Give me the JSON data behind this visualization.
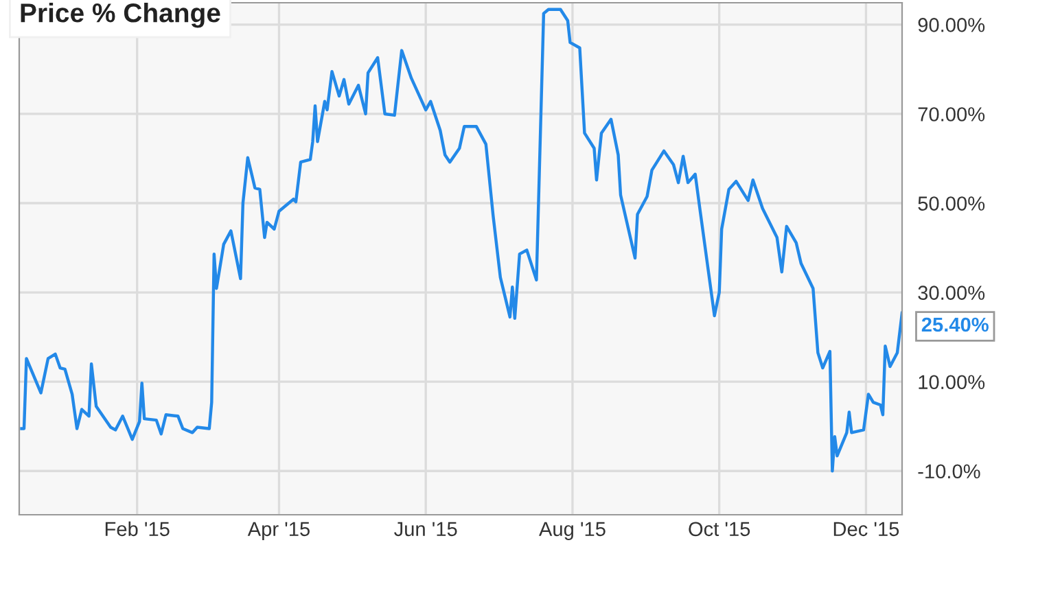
{
  "chart_data": {
    "type": "line",
    "title": "Price % Change",
    "x": [
      "2014-12-15",
      "2014-12-16",
      "2014-12-17",
      "2014-12-23",
      "2014-12-26",
      "2014-12-29",
      "2014-12-31",
      "2015-01-02",
      "2015-01-05",
      "2015-01-07",
      "2015-01-09",
      "2015-01-12",
      "2015-01-13",
      "2015-01-15",
      "2015-01-21",
      "2015-01-23",
      "2015-01-26",
      "2015-01-30",
      "2015-02-02",
      "2015-02-03",
      "2015-02-04",
      "2015-02-09",
      "2015-02-11",
      "2015-02-13",
      "2015-02-18",
      "2015-02-20",
      "2015-02-24",
      "2015-02-26",
      "2015-03-03",
      "2015-03-04",
      "2015-03-05",
      "2015-03-06",
      "2015-03-09",
      "2015-03-12",
      "2015-03-16",
      "2015-03-17",
      "2015-03-19",
      "2015-03-22",
      "2015-03-24",
      "2015-03-26",
      "2015-03-27",
      "2015-03-30",
      "2015-04-01",
      "2015-04-07",
      "2015-04-08",
      "2015-04-10",
      "2015-04-14",
      "2015-04-15",
      "2015-04-16",
      "2015-04-17",
      "2015-04-20",
      "2015-04-21",
      "2015-04-23",
      "2015-04-26",
      "2015-04-28",
      "2015-04-30",
      "2015-05-04",
      "2015-05-07",
      "2015-05-08",
      "2015-05-12",
      "2015-05-15",
      "2015-05-19",
      "2015-05-22",
      "2015-05-26",
      "2015-06-01",
      "2015-06-03",
      "2015-06-07",
      "2015-06-09",
      "2015-06-11",
      "2015-06-15",
      "2015-06-17",
      "2015-06-22",
      "2015-06-26",
      "2015-06-29",
      "2015-07-02",
      "2015-07-06",
      "2015-07-07",
      "2015-07-08",
      "2015-07-10",
      "2015-07-13",
      "2015-07-17",
      "2015-07-20",
      "2015-07-22",
      "2015-07-27",
      "2015-07-30",
      "2015-07-31",
      "2015-08-04",
      "2015-08-06",
      "2015-08-10",
      "2015-08-11",
      "2015-08-13",
      "2015-08-17",
      "2015-08-20",
      "2015-08-21",
      "2015-08-27",
      "2015-08-28",
      "2015-09-01",
      "2015-09-03",
      "2015-09-08",
      "2015-09-12",
      "2015-09-14",
      "2015-09-16",
      "2015-09-18",
      "2015-09-21",
      "2015-09-23",
      "2015-09-29",
      "2015-10-01",
      "2015-10-02",
      "2015-10-05",
      "2015-10-08",
      "2015-10-13",
      "2015-10-15",
      "2015-10-19",
      "2015-10-25",
      "2015-10-27",
      "2015-10-29",
      "2015-11-02",
      "2015-11-04",
      "2015-11-09",
      "2015-11-11",
      "2015-11-13",
      "2015-11-16",
      "2015-11-17",
      "2015-11-18",
      "2015-11-19",
      "2015-11-23",
      "2015-11-24",
      "2015-11-25",
      "2015-11-30",
      "2015-12-02",
      "2015-12-04",
      "2015-12-07",
      "2015-12-08",
      "2015-12-09",
      "2015-12-11",
      "2015-12-14",
      "2015-12-16"
    ],
    "series": [
      {
        "color": "#2389e8",
        "values": [
          -0.5,
          -0.5,
          15.2,
          7.5,
          15.2,
          16.2,
          13.1,
          12.8,
          7.2,
          -0.5,
          3.8,
          2.3,
          14,
          4.5,
          -0.2,
          -0.8,
          2.3,
          -2.9,
          1.1,
          9.7,
          1.7,
          1.4,
          -1.7,
          2.6,
          2.3,
          -0.5,
          -1.4,
          -0.2,
          -0.5,
          5.4,
          38.6,
          30.9,
          40.8,
          43.8,
          33.1,
          50,
          60.2,
          53.4,
          53.1,
          42.3,
          45.7,
          44.2,
          48.2,
          50.9,
          50.3,
          59.2,
          59.8,
          63.8,
          71.8,
          63.8,
          72.8,
          70.9,
          79.5,
          74,
          77.7,
          72.2,
          76.4,
          70,
          79.2,
          82.6,
          70,
          69.7,
          84.2,
          78,
          70.9,
          72.8,
          66.3,
          60.8,
          59.2,
          62.3,
          67.2,
          67.2,
          63.2,
          47.2,
          33.4,
          24.5,
          31.2,
          24.2,
          38.6,
          39.5,
          32.8,
          92.5,
          93.4,
          93.4,
          90.9,
          86,
          84.8,
          65.7,
          62.3,
          55.2,
          65.7,
          68.8,
          60.8,
          51.8,
          37.7,
          47.5,
          51.5,
          57.4,
          61.7,
          58.6,
          54.6,
          60.5,
          54.6,
          56.5,
          48.5,
          24.8,
          30,
          44.2,
          53.1,
          54.9,
          50.6,
          55.2,
          48.8,
          42.3,
          34.6,
          44.8,
          41.1,
          36.5,
          30.9,
          16.5,
          13.1,
          16.8,
          -10,
          -2.3,
          -6.6,
          -1.4,
          3.2,
          -1.4,
          -0.8,
          7.2,
          5.4,
          4.8,
          2.6,
          18,
          13.4,
          16.5,
          25.4
        ]
      }
    ],
    "xlim": [
      "2014-12-14",
      "2015-12-16"
    ],
    "xticks": [
      {
        "value": "2015-02-01",
        "label": "Feb '15"
      },
      {
        "value": "2015-04-01",
        "label": "Apr '15"
      },
      {
        "value": "2015-06-01",
        "label": "Jun '15"
      },
      {
        "value": "2015-08-01",
        "label": "Aug '15"
      },
      {
        "value": "2015-10-01",
        "label": "Oct '15"
      },
      {
        "value": "2015-12-01",
        "label": "Dec '15"
      }
    ],
    "ylim": [
      -19.8,
      94.9
    ],
    "yticks": [
      {
        "value": -10,
        "label": "-10.0%"
      },
      {
        "value": 10,
        "label": "10.00%"
      },
      {
        "value": 30,
        "label": "30.00%"
      },
      {
        "value": 50,
        "label": "50.00%"
      },
      {
        "value": 70,
        "label": "70.00%"
      },
      {
        "value": 90,
        "label": "90.00%"
      }
    ],
    "annotations": [
      {
        "text": "25.40%",
        "x": "2015-12-16",
        "y": 25.4
      }
    ],
    "grid": true,
    "marker": "none",
    "line_style": "solid",
    "legend": false
  }
}
